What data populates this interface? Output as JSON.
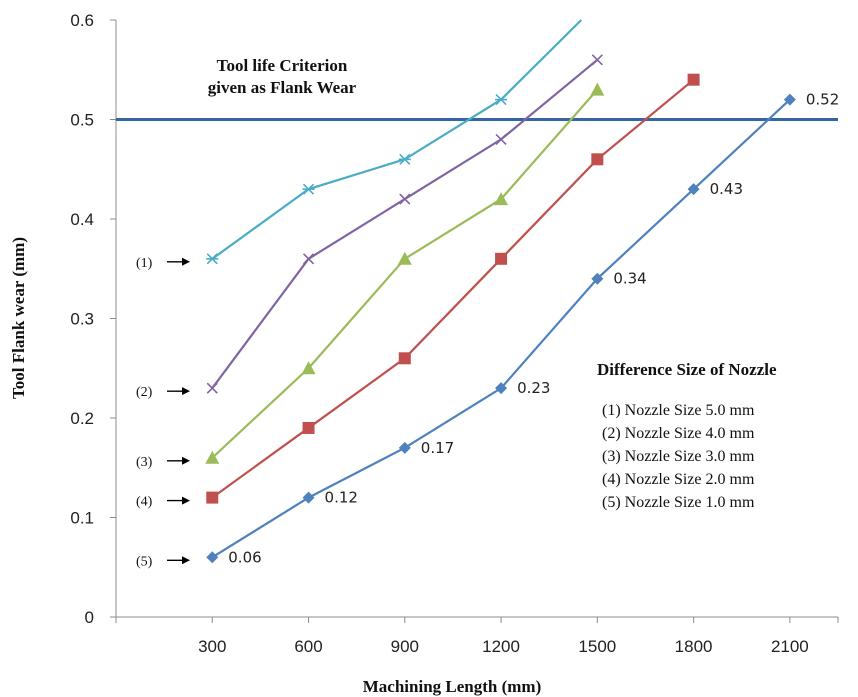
{
  "chart_data": {
    "type": "line",
    "xlabel": "Machining Length (mm)",
    "ylabel": "Tool Flank wear (mm)",
    "xlim": [
      0,
      2250
    ],
    "ylim": [
      0,
      0.6
    ],
    "x_ticks": [
      300,
      600,
      900,
      1200,
      1500,
      1800,
      2100
    ],
    "y_ticks": [
      0,
      0.1,
      0.2,
      0.3,
      0.4,
      0.5,
      0.6
    ],
    "y_tick_labels": [
      "0",
      "0.1",
      "0.2",
      "0.3",
      "0.4",
      "0.5",
      "0.6"
    ],
    "grid": false,
    "criterion": {
      "value": 0.5,
      "color": "#3465a4",
      "label_lines": [
        "Tool life Criterion",
        "given as Flank Wear"
      ]
    },
    "series": [
      {
        "id": "s1",
        "marker_label": "(1)",
        "color": "#4bacc6",
        "marker": "star",
        "x": [
          300,
          600,
          900,
          1200,
          1450
        ],
        "y": [
          0.36,
          0.43,
          0.46,
          0.52,
          0.6
        ]
      },
      {
        "id": "s2",
        "marker_label": "(2)",
        "color": "#8064a2",
        "marker": "x",
        "x": [
          300,
          600,
          900,
          1200,
          1500
        ],
        "y": [
          0.23,
          0.36,
          0.42,
          0.48,
          0.56
        ]
      },
      {
        "id": "s3",
        "marker_label": "(3)",
        "color": "#9bbb59",
        "marker": "triangle",
        "x": [
          300,
          600,
          900,
          1200,
          1500
        ],
        "y": [
          0.16,
          0.25,
          0.36,
          0.42,
          0.53
        ]
      },
      {
        "id": "s4",
        "marker_label": "(4)",
        "color": "#c0504d",
        "marker": "square",
        "x": [
          300,
          600,
          900,
          1200,
          1500,
          1800
        ],
        "y": [
          0.12,
          0.19,
          0.26,
          0.36,
          0.46,
          0.54
        ]
      },
      {
        "id": "s5",
        "marker_label": "(5)",
        "color": "#4f81bd",
        "marker": "diamond",
        "x": [
          300,
          600,
          900,
          1200,
          1500,
          1800,
          2100
        ],
        "y": [
          0.06,
          0.12,
          0.17,
          0.23,
          0.34,
          0.43,
          0.52
        ],
        "data_labels": [
          "0.06",
          "0.12",
          "0.17",
          "0.23",
          "0.34",
          "0.43",
          "0.52"
        ]
      }
    ],
    "legend": {
      "title": "Difference Size of Nozzle",
      "placement": "right",
      "items": [
        "(1) Nozzle  Size 5.0 mm",
        "(2) Nozzle  Size  4.0 mm",
        "(3) Nozzle  Size 3.0 mm",
        "(4) Nozzle  Size 2.0 mm",
        "(5) Nozzle  Size 1.0 mm"
      ]
    }
  }
}
